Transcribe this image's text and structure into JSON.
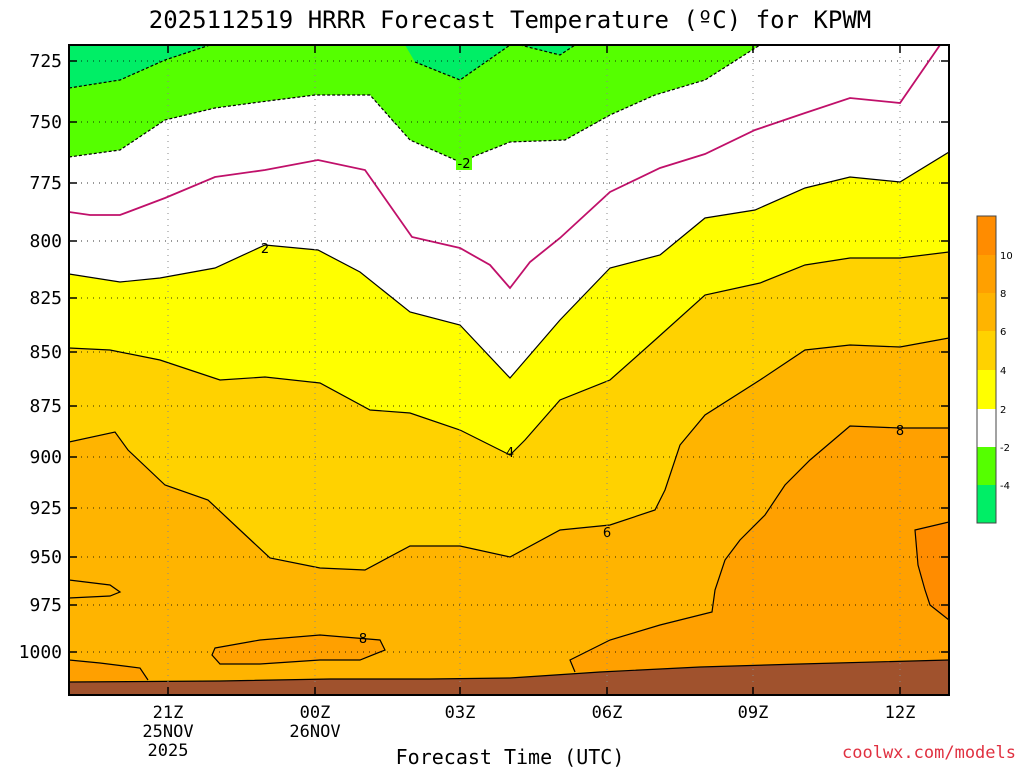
{
  "chart_data": {
    "type": "heatmap",
    "title": "2025112519 HRRR Forecast Temperature (ºC) for KPWM",
    "xlabel": "Forecast Time (UTC)",
    "credit": "coolwx.com/models",
    "y_ticks": [
      725,
      750,
      775,
      800,
      825,
      850,
      875,
      900,
      925,
      950,
      975,
      1000
    ],
    "x_ticks": [
      {
        "line1": "21Z",
        "line2": "25NOV",
        "line3": "2025"
      },
      {
        "line1": "00Z",
        "line2": "26NOV",
        "line3": ""
      },
      {
        "line1": "03Z",
        "line2": "",
        "line3": ""
      },
      {
        "line1": "06Z",
        "line2": "",
        "line3": ""
      },
      {
        "line1": "09Z",
        "line2": "",
        "line3": ""
      },
      {
        "line1": "12Z",
        "line2": "",
        "line3": ""
      }
    ],
    "contour_labels": [
      {
        "text": "-2"
      },
      {
        "text": "2"
      },
      {
        "text": "4"
      },
      {
        "text": "6"
      },
      {
        "text": "8"
      },
      {
        "text": "8"
      }
    ],
    "colorbar": {
      "ticks": [
        "10",
        "8",
        "6",
        "4",
        "2",
        "-2",
        "-4"
      ],
      "bands": [
        {
          "range": [
            10,
            12
          ],
          "color": "#ff8c00"
        },
        {
          "range": [
            8,
            10
          ],
          "color": "#ffa000"
        },
        {
          "range": [
            6,
            8
          ],
          "color": "#ffb400"
        },
        {
          "range": [
            4,
            6
          ],
          "color": "#ffd200"
        },
        {
          "range": [
            2,
            4
          ],
          "color": "#ffff00"
        },
        {
          "range": [
            -2,
            2
          ],
          "color": "#ffffff"
        },
        {
          "range": [
            -4,
            -2
          ],
          "color": "#55ff00"
        },
        {
          "range": [
            -6,
            -4
          ],
          "color": "#00ee66"
        }
      ]
    },
    "grid": true,
    "colors": {
      "terrain": "#a0522d",
      "zero_line": "#c0106a"
    }
  }
}
